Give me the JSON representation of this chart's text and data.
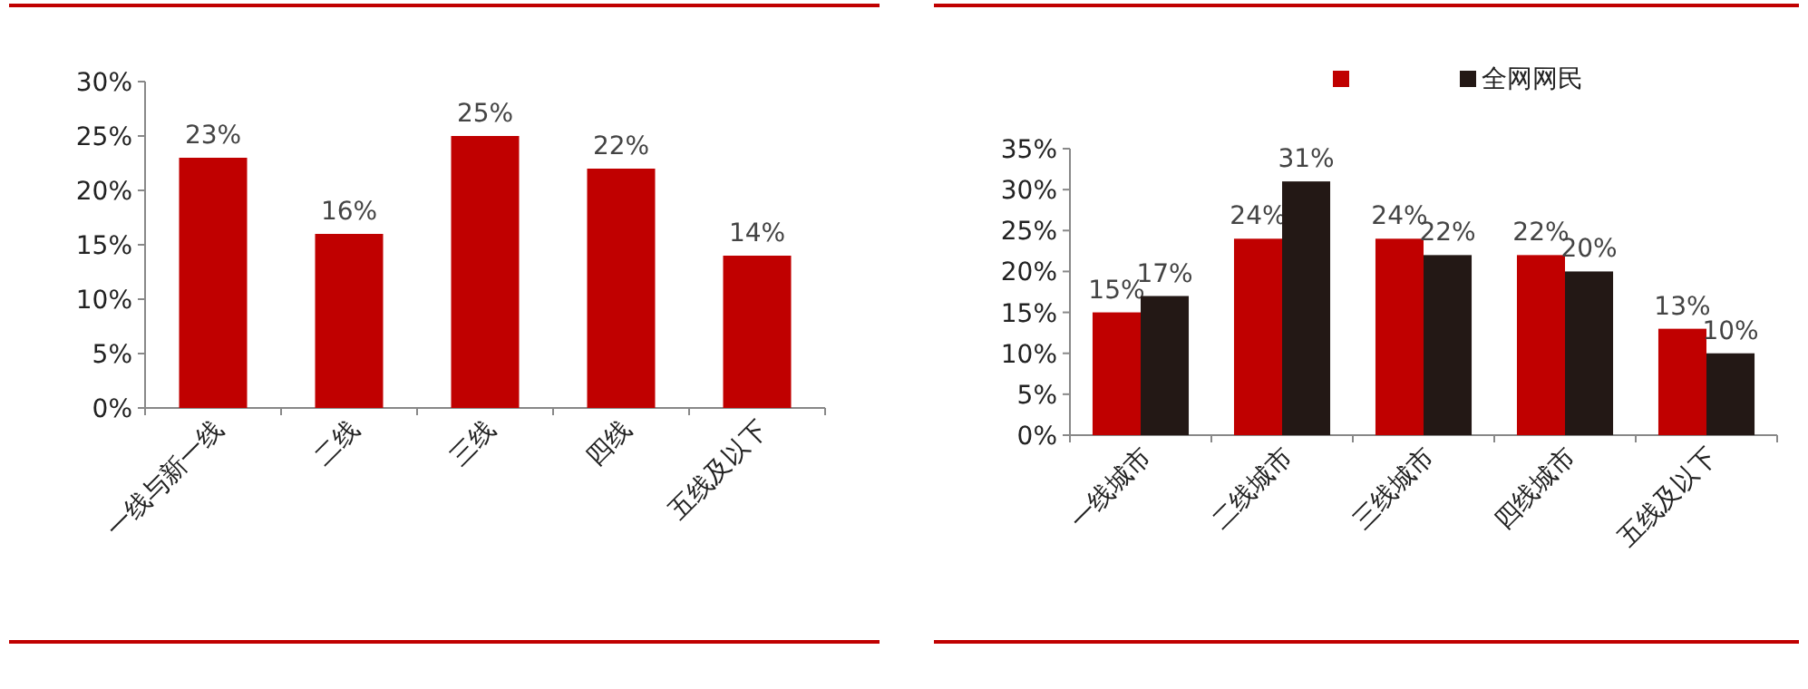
{
  "chart_data": [
    {
      "type": "bar",
      "categories": [
        "一线与新一线",
        "二线",
        "三线",
        "四线",
        "五线及以下"
      ],
      "values": [
        23,
        16,
        25,
        22,
        14
      ],
      "value_labels": [
        "23%",
        "16%",
        "25%",
        "22%",
        "14%"
      ],
      "color": "#c00000",
      "ylim": [
        0,
        30
      ],
      "yticks": [
        {
          "value": 0,
          "label": "0%"
        },
        {
          "value": 5,
          "label": "5%"
        },
        {
          "value": 10,
          "label": "10%"
        },
        {
          "value": 15,
          "label": "15%"
        },
        {
          "value": 20,
          "label": "20%"
        },
        {
          "value": 25,
          "label": "25%"
        },
        {
          "value": 30,
          "label": "30%"
        }
      ],
      "grid": false,
      "legend": false
    },
    {
      "type": "bar",
      "categories": [
        "一线城市",
        "二线城市",
        "三线城市",
        "四线城市",
        "五线及以下"
      ],
      "series": [
        {
          "color": "#c00000",
          "values": [
            15,
            24,
            24,
            22,
            13
          ],
          "value_labels": [
            "15%",
            "24%",
            "24%",
            "22%",
            "13%"
          ]
        },
        {
          "name": "全网网民",
          "color": "#231815",
          "values": [
            17,
            31,
            22,
            20,
            10
          ],
          "value_labels": [
            "17%",
            "31%",
            "22%",
            "20%",
            "10%"
          ]
        }
      ],
      "ylim": [
        0,
        35
      ],
      "yticks": [
        {
          "value": 0,
          "label": "0%"
        },
        {
          "value": 5,
          "label": "5%"
        },
        {
          "value": 10,
          "label": "10%"
        },
        {
          "value": 15,
          "label": "15%"
        },
        {
          "value": 20,
          "label": "20%"
        },
        {
          "value": 25,
          "label": "25%"
        },
        {
          "value": 30,
          "label": "30%"
        },
        {
          "value": 35,
          "label": "35%"
        }
      ],
      "grid": false,
      "legend": "top"
    }
  ]
}
